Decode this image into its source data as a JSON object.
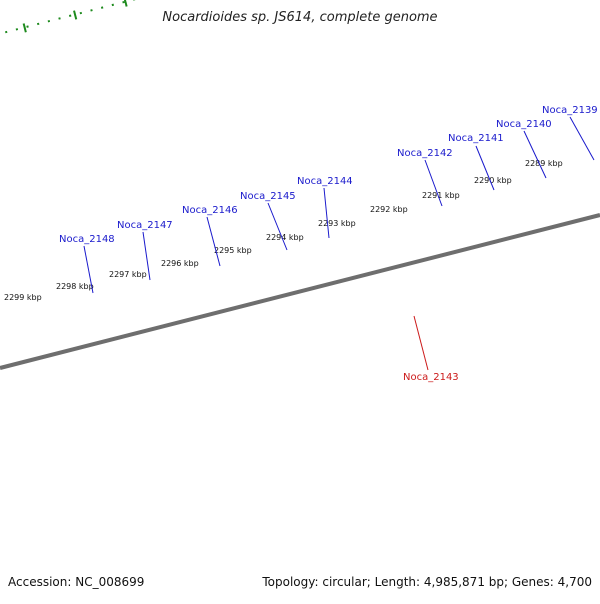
{
  "header": {
    "title": "Nocardioides sp. JS614, complete genome"
  },
  "footer": {
    "accession": "Accession: NC_008699",
    "summary": "Topology: circular; Length: 4,985,871 bp; Genes: 4,700"
  },
  "colors": {
    "cds_forward": "#1f1fe6",
    "cds_reverse": "#1f1fe6",
    "region_blue": "#4d7fb3",
    "region_grey": "#b3b3b8",
    "rna_red": "#e81c1c",
    "rna_orange": "#f08c0f",
    "backbone": "#7a7a7a",
    "tick_green": "#1d8a1d",
    "label_blue": "#1a1acc",
    "label_red": "#cc1a1a"
  },
  "scale_labels": [
    "2299 kbp",
    "2298 kbp",
    "2297 kbp",
    "2296 kbp",
    "2295 kbp",
    "2294 kbp",
    "2293 kbp",
    "2292 kbp",
    "2291 kbp",
    "2290 kbp",
    "2289 kbp"
  ],
  "gene_labels": [
    "Noca_2148",
    "Noca_2147",
    "Noca_2146",
    "Noca_2145",
    "Noca_2144",
    "Noca_2142",
    "Noca_2141",
    "Noca_2140",
    "Noca_2139",
    "Noca_2143"
  ]
}
